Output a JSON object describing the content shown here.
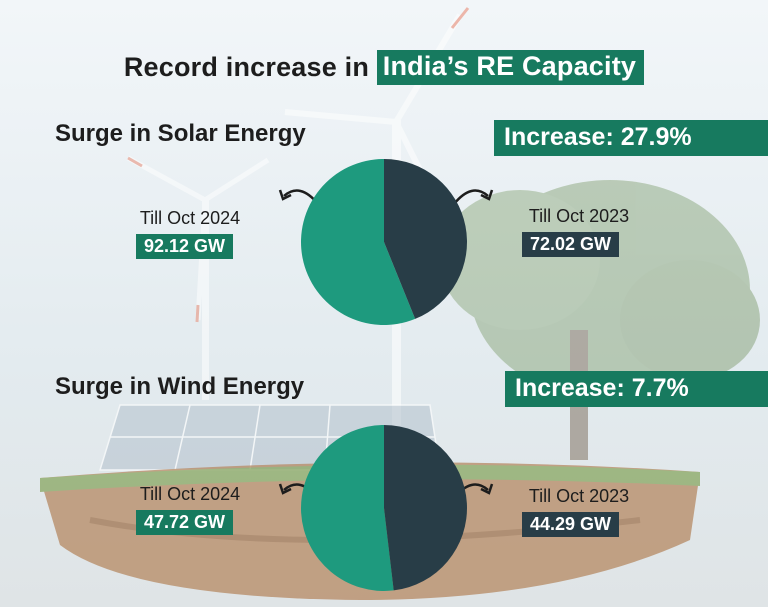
{
  "title": {
    "prefix": "Record increase in",
    "highlight": "India’s RE Capacity"
  },
  "colors": {
    "teal": "#1e9a7e",
    "dark": "#283d47",
    "badge": "#177a5f"
  },
  "solar": {
    "heading": "Surge in Solar Energy",
    "increase": "Increase: 27.9%",
    "left_label": "Till Oct 2024",
    "left_value": "92.12 GW",
    "right_label": "Till Oct 2023",
    "right_value": "72.02 GW"
  },
  "wind": {
    "heading": "Surge in Wind Energy",
    "increase": "Increase: 7.7%",
    "left_label": "Till Oct 2024",
    "left_value": "47.72 GW",
    "right_label": "Till Oct 2023",
    "right_value": "44.29 GW"
  },
  "chart_data": [
    {
      "type": "pie",
      "title": "Surge in Solar Energy",
      "categories": [
        "Till Oct 2024",
        "Till Oct 2023"
      ],
      "values": [
        92.12,
        72.02
      ],
      "unit": "GW"
    },
    {
      "type": "pie",
      "title": "Surge in Wind Energy",
      "categories": [
        "Till Oct 2024",
        "Till Oct 2023"
      ],
      "values": [
        47.72,
        44.29
      ],
      "unit": "GW"
    }
  ]
}
